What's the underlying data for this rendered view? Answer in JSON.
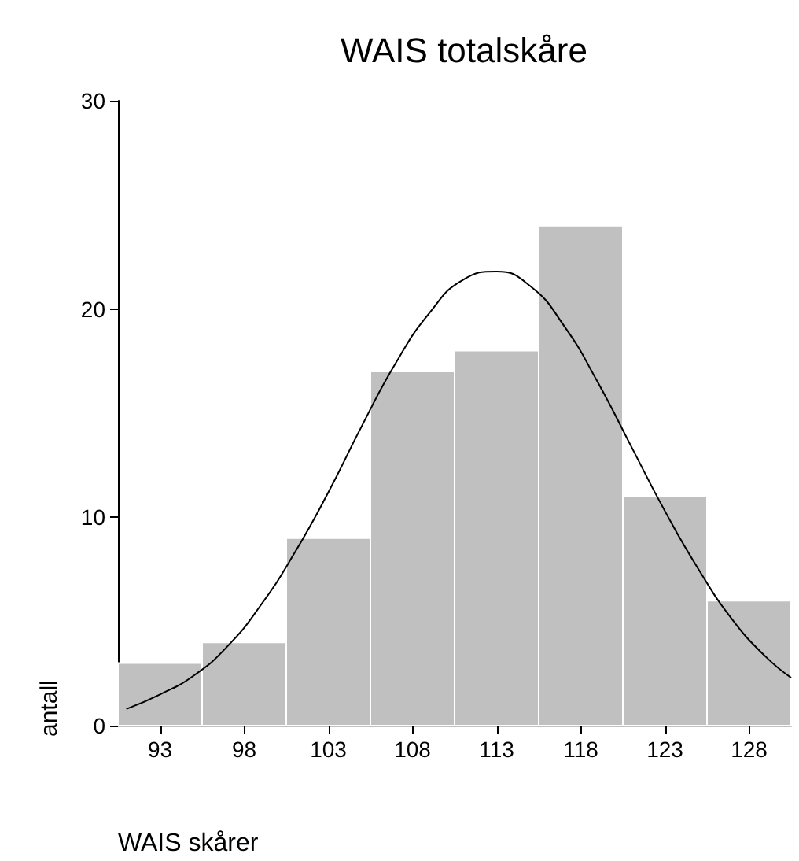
{
  "chart_data": {
    "type": "histogram",
    "title": "WAIS totalskåre",
    "xlabel": "WAIS skårer",
    "ylabel": "antall",
    "bins": [
      90.5,
      95.5,
      100.5,
      105.5,
      110.5,
      115.5,
      120.5,
      125.5,
      130.5
    ],
    "values": [
      3,
      4,
      9,
      17,
      18,
      24,
      11,
      6
    ],
    "color": "#c0c0c0",
    "series": [
      {
        "type": "line",
        "color": "#000000",
        "x": [
          91,
          93,
          95,
          97,
          99,
          101,
          103,
          105,
          107,
          109,
          111,
          113,
          115,
          117,
          119,
          121,
          123,
          125,
          127,
          129,
          130.5
        ],
        "values": [
          0.8,
          1.5,
          2.4,
          3.8,
          5.8,
          8.3,
          11.2,
          14.4,
          17.4,
          19.8,
          21.4,
          21.8,
          21.1,
          19.2,
          16.5,
          13.4,
          10.3,
          7.5,
          5.1,
          3.3,
          2.3
        ]
      }
    ],
    "xlim": [
      90.5,
      130.5
    ],
    "xticks": [
      93,
      98,
      103,
      108,
      113,
      118,
      123,
      128
    ],
    "ylim": [
      0,
      30
    ],
    "yticks": [
      0,
      10,
      20,
      30
    ],
    "grid": false,
    "marker": "none",
    "line_style": "solid"
  }
}
